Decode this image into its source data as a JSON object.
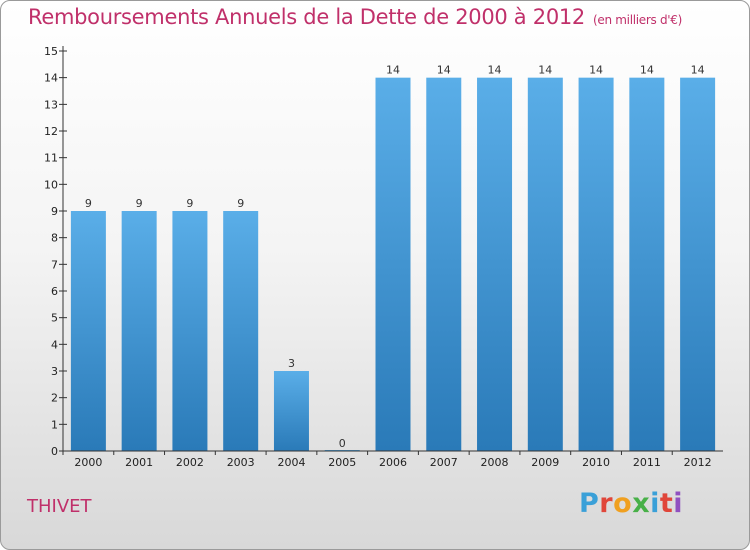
{
  "header": {
    "title": "Remboursements Annuels de la Dette de 2000 à 2012",
    "unit": "(en milliers d'€)"
  },
  "footer": {
    "commune": "THIVET",
    "logo_text": "Proxiti",
    "logo_colors": [
      "#3aa0d8",
      "#e0463a",
      "#f0a020",
      "#48b048",
      "#3aa0d8",
      "#e0463a",
      "#9050c0"
    ]
  },
  "colors": {
    "bar_light": "#5aaee8",
    "bar_dark": "#2a7ab8",
    "axis": "#333333",
    "title": "#c0306a"
  },
  "chart_data": {
    "type": "bar",
    "title": "Remboursements Annuels de la Dette de 2000 à 2012",
    "categories": [
      "2000",
      "2001",
      "2002",
      "2003",
      "2004",
      "2005",
      "2006",
      "2007",
      "2008",
      "2009",
      "2010",
      "2011",
      "2012"
    ],
    "values": [
      9,
      9,
      9,
      9,
      3,
      0,
      14,
      14,
      14,
      14,
      14,
      14,
      14
    ],
    "value_labels": [
      "9",
      "9",
      "9",
      "9",
      "3",
      "0",
      "14",
      "14",
      "14",
      "14",
      "14",
      "14",
      "14"
    ],
    "ylim": [
      0,
      15
    ],
    "yticks": [
      {
        "value": 0,
        "label": "0"
      },
      {
        "value": 1,
        "label": "1"
      },
      {
        "value": 2,
        "label": "2"
      },
      {
        "value": 3,
        "label": "3"
      },
      {
        "value": 4,
        "label": "4"
      },
      {
        "value": 5,
        "label": "5"
      },
      {
        "value": 6,
        "label": "6"
      },
      {
        "value": 7,
        "label": "7"
      },
      {
        "value": 8,
        "label": "8"
      },
      {
        "value": 9,
        "label": "9"
      },
      {
        "value": 10,
        "label": "10"
      },
      {
        "value": 11,
        "label": "11"
      },
      {
        "value": 12,
        "label": "12"
      },
      {
        "value": 13,
        "label": "13"
      },
      {
        "value": 14,
        "label": "14"
      },
      {
        "value": 15,
        "label": "15"
      }
    ],
    "xlabel": "",
    "ylabel": "",
    "grid": false
  }
}
